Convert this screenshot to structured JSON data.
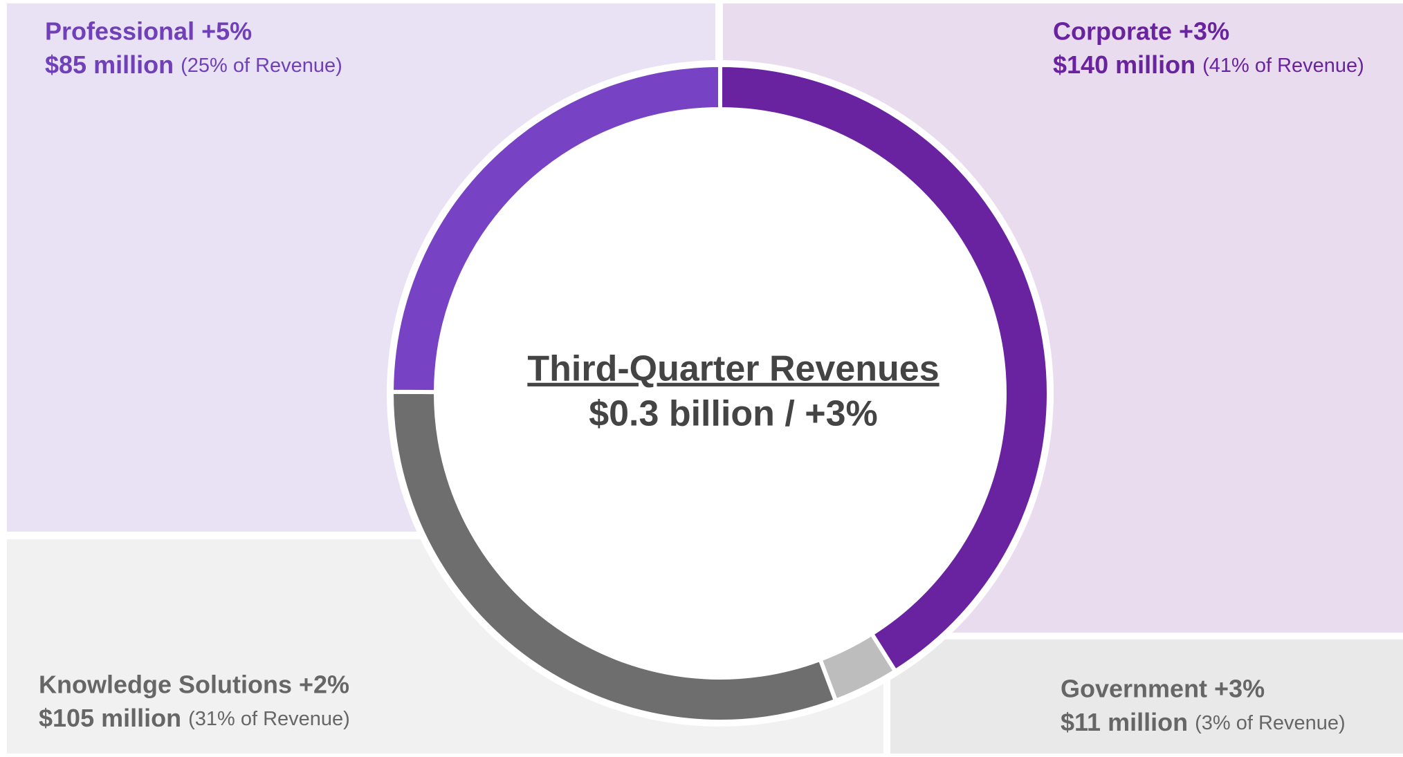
{
  "chart_data": {
    "type": "donut",
    "title": "Third-Quarter Revenues",
    "subtitle": "$0.3 billion / +3%",
    "series": [
      {
        "name": "Corporate +3%",
        "color": "#6a23a0",
        "values": [
          140
        ],
        "value_labels": [
          "$140 million"
        ],
        "share_label": "(41% of Revenue)"
      },
      {
        "name": "Government +3%",
        "color": "#bdbdbd",
        "values": [
          11
        ],
        "value_labels": [
          "$11 million"
        ],
        "share_label": "(3% of Revenue)"
      },
      {
        "name": "Knowledge Solutions +2%",
        "color": "#6e6e6e",
        "values": [
          105
        ],
        "value_labels": [
          "$105 million"
        ],
        "share_label": "(31% of Revenue)"
      },
      {
        "name": "Professional +5%",
        "color": "#7743c4",
        "values": [
          85
        ],
        "value_labels": [
          "$85 million"
        ],
        "share_label": "(25% of Revenue)"
      }
    ]
  }
}
